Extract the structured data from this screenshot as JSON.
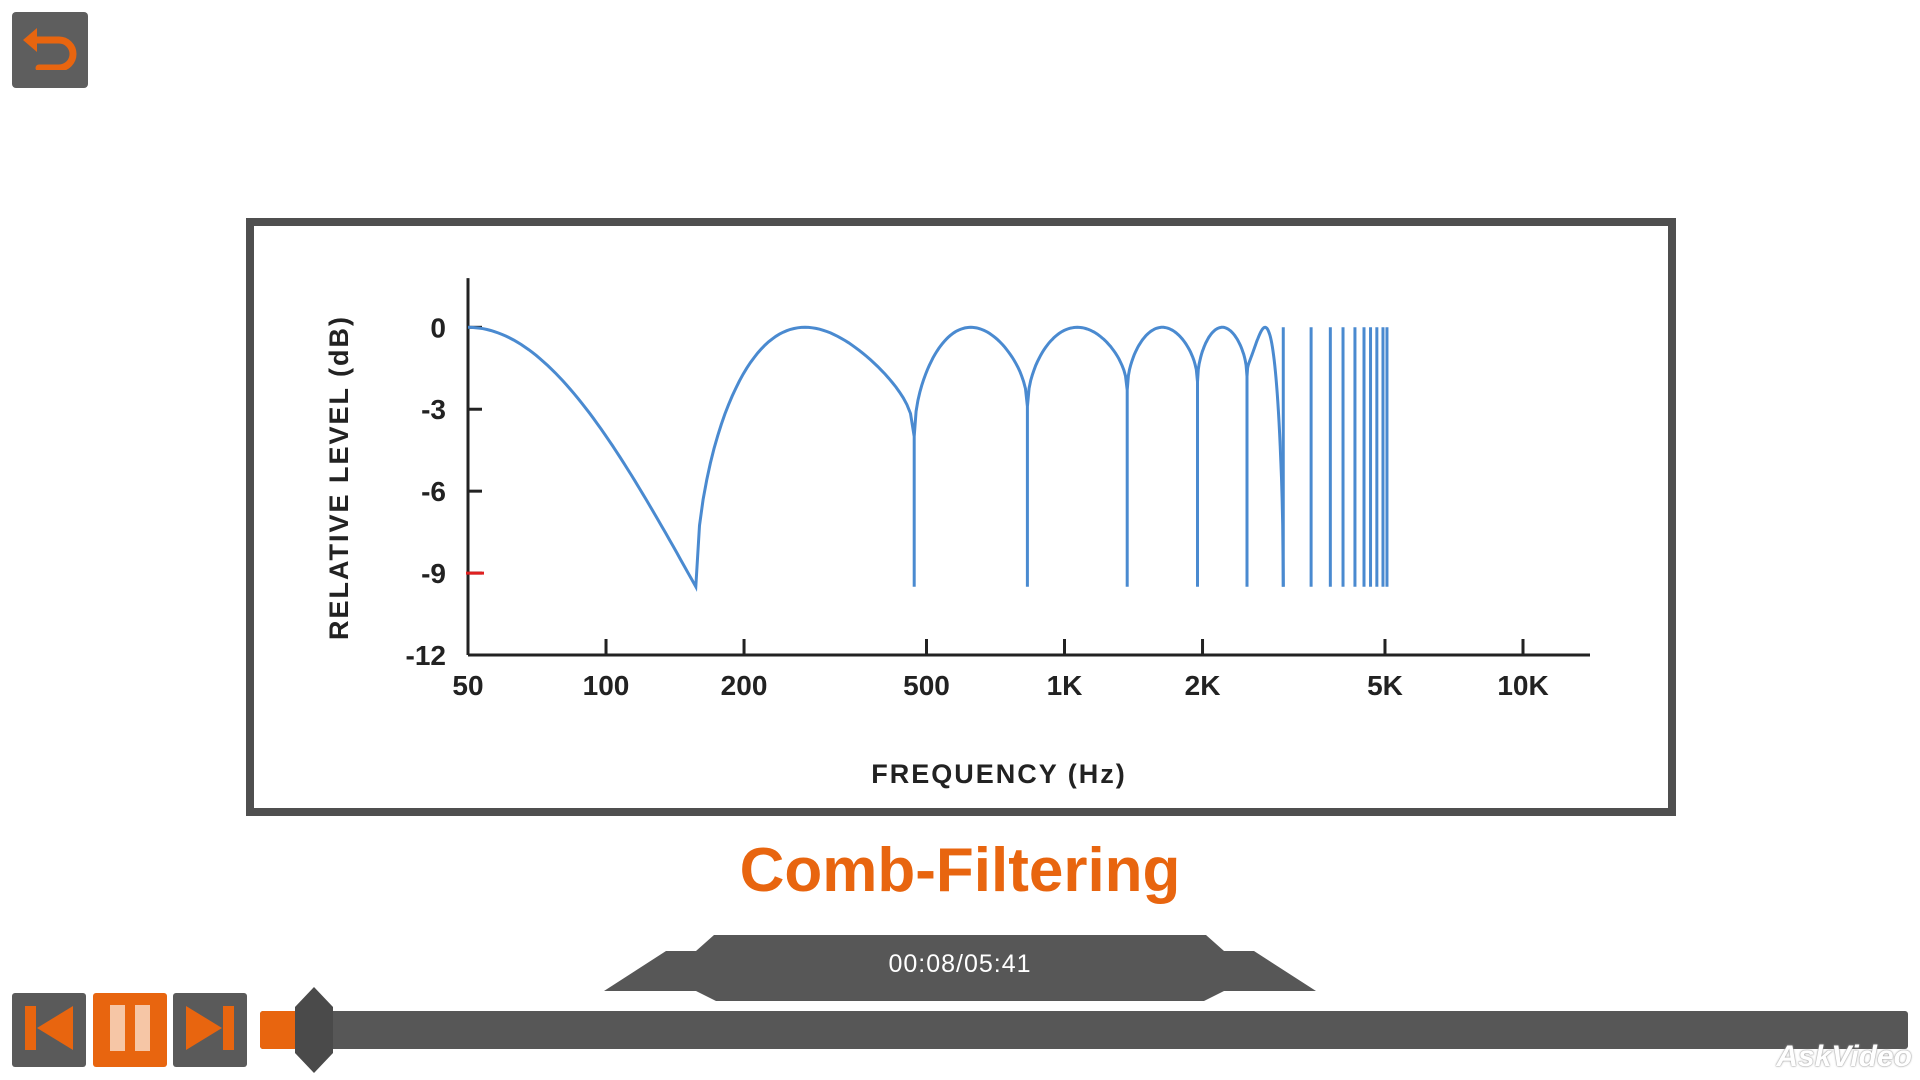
{
  "toolbar": {
    "back_icon": "undo-arrow-icon"
  },
  "slide": {
    "title": "Comb-Filtering"
  },
  "player": {
    "time_display": "00:08/05:41",
    "elapsed_seconds": 8,
    "duration_seconds": 341,
    "progress_fraction": 0.023,
    "prev_icon": "skip-back-icon",
    "pause_icon": "pause-icon",
    "next_icon": "skip-forward-icon",
    "accent_color": "#e8650f"
  },
  "watermark": {
    "text": "AskVideo"
  },
  "chart_data": {
    "type": "line",
    "xlabel": "FREQUENCY (Hz)",
    "ylabel": "RELATIVE LEVEL (dB)",
    "x_scale": "log",
    "xlim": [
      50,
      15000
    ],
    "ylim": [
      -12,
      1
    ],
    "x_ticks": [
      50,
      100,
      200,
      500,
      1000,
      2000,
      5000,
      10000
    ],
    "x_tick_labels": [
      "50",
      "100",
      "200",
      "500",
      "1K",
      "2K",
      "5K",
      "10K"
    ],
    "y_ticks": [
      0,
      -3,
      -6,
      -9,
      -12
    ],
    "y_tick_labels": [
      "0",
      "-3",
      "-6",
      "-9",
      "-12"
    ],
    "series": [
      {
        "color": "#4a8ad0",
        "description_points": [
          {
            "x": 50,
            "y": 0
          },
          {
            "x": 157,
            "y": -9.5
          },
          {
            "x": 285,
            "y": 0
          },
          {
            "x": 460,
            "y": -4
          },
          {
            "x": 620,
            "y": 0
          },
          {
            "x": 850,
            "y": -2.9
          },
          {
            "x": 1050,
            "y": 0
          },
          {
            "x": 1400,
            "y": -2.3
          },
          {
            "x": 1650,
            "y": 0
          },
          {
            "x": 2000,
            "y": -2.0
          },
          {
            "x": 2300,
            "y": 0
          },
          {
            "x": 2600,
            "y": -1.8
          },
          {
            "x": 2800,
            "y": 0
          },
          {
            "x": 3000,
            "y": -9.5
          }
        ],
        "null_frequencies": [
          157,
          470,
          830,
          1370,
          1950,
          2500,
          3000,
          3450,
          3800,
          4050,
          4300,
          4500,
          4650,
          4800,
          4950,
          5050
        ]
      }
    ],
    "grid": false,
    "marker": {
      "y": -9,
      "color": "#e02020"
    }
  }
}
